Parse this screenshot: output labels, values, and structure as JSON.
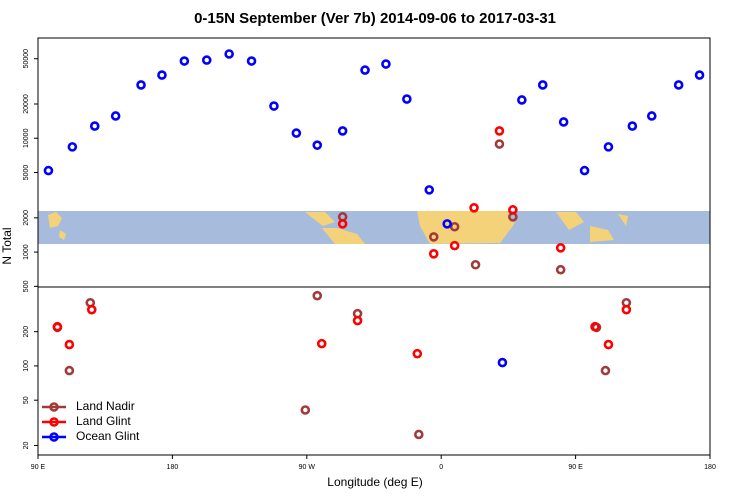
{
  "chart_data": {
    "type": "scatter",
    "title": "0-15N September (Ver 7b)   2014-09-06 to 2017-03-31",
    "x_label": "Longitude (deg E)",
    "y_label": "N Total",
    "xlim": [
      90,
      540
    ],
    "xticks": [
      {
        "value": 90,
        "label": "90 E"
      },
      {
        "value": 180,
        "label": "180"
      },
      {
        "value": 270,
        "label": "90 W"
      },
      {
        "value": 360,
        "label": "0"
      },
      {
        "value": 450,
        "label": "90 E"
      },
      {
        "value": 540,
        "label": "180"
      }
    ],
    "ylim": [
      16.5,
      76000
    ],
    "yticks": [
      20,
      50,
      100,
      200,
      500,
      1000,
      2000,
      5000,
      10000,
      20000,
      50000
    ],
    "log_y": true,
    "legend": "bottom-left",
    "series": [
      {
        "name": "Land Nadir",
        "color": "#a33a3a",
        "x": [
          103,
          111,
          125,
          269,
          277,
          294,
          304,
          345,
          355,
          369,
          383,
          399,
          408,
          440,
          464,
          470,
          484
        ],
        "values": [
          218,
          91,
          359,
          41,
          414,
          2040,
          288,
          25,
          1360,
          1670,
          774,
          8900,
          2040,
          700,
          218,
          91,
          359
        ]
      },
      {
        "name": "Land Glint",
        "color": "#ff0000",
        "x": [
          103,
          111,
          126,
          280,
          294,
          304,
          344,
          355,
          369,
          382,
          399,
          408,
          440,
          463,
          472,
          484
        ],
        "values": [
          221,
          154,
          312,
          157,
          1770,
          250,
          128,
          966,
          1140,
          2450,
          11600,
          2350,
          1090,
          221,
          154,
          312
        ]
      },
      {
        "name": "Ocean Glint",
        "color": "#0000ff",
        "x": [
          97,
          113,
          128,
          142,
          159,
          173,
          188,
          203,
          218,
          233,
          248,
          263,
          277,
          294,
          309,
          323,
          337,
          352,
          364,
          401,
          414,
          428,
          442,
          456,
          472,
          488,
          501,
          519,
          533
        ],
        "values": [
          5200,
          8400,
          12800,
          15700,
          29400,
          35900,
          47700,
          48600,
          55000,
          47700,
          19200,
          11100,
          8700,
          11600,
          39700,
          44900,
          22100,
          3520,
          1770,
          107,
          21700,
          29400,
          13900,
          5200,
          8400,
          12800,
          15700,
          29400,
          35900
        ]
      }
    ]
  }
}
